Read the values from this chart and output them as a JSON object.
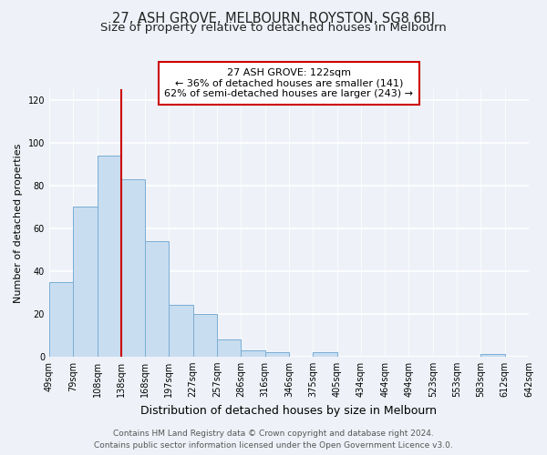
{
  "title": "27, ASH GROVE, MELBOURN, ROYSTON, SG8 6BJ",
  "subtitle": "Size of property relative to detached houses in Melbourn",
  "xlabel": "Distribution of detached houses by size in Melbourn",
  "ylabel": "Number of detached properties",
  "bar_values": [
    35,
    70,
    94,
    83,
    54,
    24,
    20,
    8,
    3,
    2,
    0,
    2,
    0,
    0,
    0,
    0,
    0,
    0,
    1,
    0
  ],
  "bar_labels": [
    "49sqm",
    "79sqm",
    "108sqm",
    "138sqm",
    "168sqm",
    "197sqm",
    "227sqm",
    "257sqm",
    "286sqm",
    "316sqm",
    "346sqm",
    "375sqm",
    "405sqm",
    "434sqm",
    "464sqm",
    "494sqm",
    "523sqm",
    "553sqm",
    "583sqm",
    "612sqm",
    "642sqm"
  ],
  "bar_color": "#c8ddf0",
  "bar_edge_color": "#7aadd4",
  "vline_color": "#cc0000",
  "annotation_title": "27 ASH GROVE: 122sqm",
  "annotation_line1": "← 36% of detached houses are smaller (141)",
  "annotation_line2": "62% of semi-detached houses are larger (243) →",
  "annotation_box_facecolor": "#ffffff",
  "annotation_box_edgecolor": "#cc0000",
  "ylim": [
    0,
    125
  ],
  "yticks": [
    0,
    20,
    40,
    60,
    80,
    100,
    120
  ],
  "footer_line1": "Contains HM Land Registry data © Crown copyright and database right 2024.",
  "footer_line2": "Contains public sector information licensed under the Open Government Licence v3.0.",
  "background_color": "#eef2f8",
  "grid_color": "#ffffff",
  "title_fontsize": 10.5,
  "subtitle_fontsize": 9.5,
  "xlabel_fontsize": 9,
  "ylabel_fontsize": 8,
  "tick_fontsize": 7,
  "annotation_fontsize": 8,
  "footer_fontsize": 6.5
}
